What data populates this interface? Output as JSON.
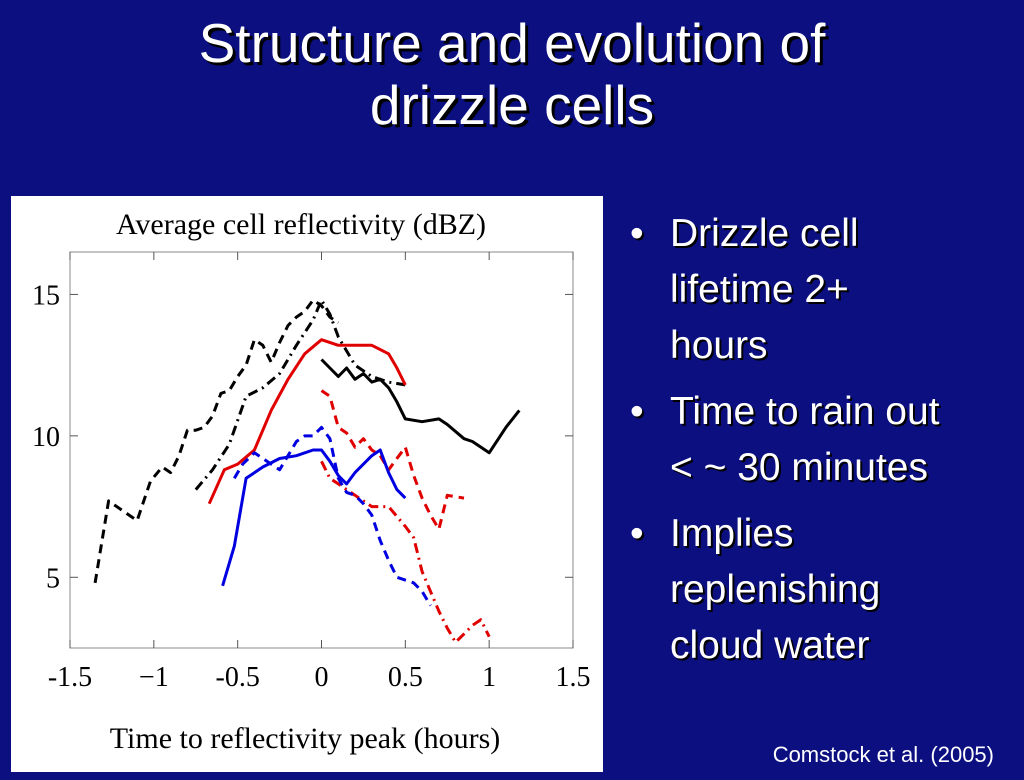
{
  "slide": {
    "title_lines": [
      "Structure and evolution of",
      "drizzle cells"
    ],
    "bullets": [
      [
        "Drizzle cell",
        "lifetime 2+",
        "hours"
      ],
      [
        "Time to rain out",
        "< ~ 30 minutes"
      ],
      [
        "Implies",
        "replenishing",
        "cloud water"
      ]
    ],
    "bullet_glyph": "•",
    "citation": "Comstock et al. (2005)",
    "background_color": "#0b0f80"
  },
  "chart_data": {
    "type": "line",
    "title": "Average cell reflectivity (dBZ)",
    "xlabel": "Time to reflectivity peak (hours)",
    "ylabel": "",
    "xlim": [
      -1.5,
      1.5
    ],
    "ylim": [
      2.5,
      16.5
    ],
    "xticks": [
      -1.5,
      -1,
      -0.5,
      0,
      0.5,
      1,
      1.5
    ],
    "xtick_labels": [
      "-1.5",
      "−1",
      "-0.5",
      "0",
      "0.5",
      "1",
      "1.5"
    ],
    "yticks": [
      5,
      10,
      15
    ],
    "ytick_labels": [
      "5",
      "10",
      "15"
    ],
    "grid": false,
    "legend": "none",
    "series": [
      {
        "color": "#000000",
        "dash": "dashed",
        "x": [
          -1.35,
          -1.27,
          -1.1,
          -1.02,
          -0.95,
          -0.9,
          -0.85,
          -0.8,
          -0.75,
          -0.7,
          -0.65,
          -0.6,
          -0.55,
          -0.5,
          -0.45,
          -0.4,
          -0.35,
          -0.3,
          -0.25,
          -0.2,
          -0.15,
          -0.1,
          -0.05,
          0,
          0.05,
          0.1
        ],
        "y": [
          4.8,
          7.7,
          7.0,
          8.4,
          8.9,
          8.7,
          9.3,
          10.2,
          10.2,
          10.3,
          10.7,
          11.5,
          11.6,
          12.1,
          12.5,
          13.4,
          13.2,
          12.6,
          13.3,
          13.9,
          14.2,
          14.4,
          14.8,
          14.6,
          14.2,
          14.0
        ]
      },
      {
        "color": "#000000",
        "dash": "dashdot",
        "x": [
          -0.75,
          -0.65,
          -0.55,
          -0.45,
          -0.35,
          -0.25,
          -0.15,
          -0.05,
          0,
          0.05,
          0.1,
          0.2,
          0.3,
          0.4,
          0.5
        ],
        "y": [
          8.1,
          8.8,
          9.7,
          11.4,
          11.7,
          12.2,
          13.2,
          14.1,
          14.8,
          14.3,
          13.5,
          12.5,
          12.1,
          11.9,
          11.8
        ]
      },
      {
        "color": "#000000",
        "dash": "solid",
        "x": [
          0,
          0.1,
          0.15,
          0.2,
          0.25,
          0.3,
          0.35,
          0.4,
          0.45,
          0.5,
          0.6,
          0.7,
          0.75,
          0.85,
          0.9,
          1.0,
          1.1,
          1.18
        ],
        "y": [
          12.7,
          12.1,
          12.4,
          12.0,
          12.2,
          11.9,
          12.0,
          11.7,
          11.2,
          10.6,
          10.5,
          10.6,
          10.4,
          9.9,
          9.8,
          9.4,
          10.3,
          10.9
        ]
      },
      {
        "color": "#e00000",
        "dash": "solid",
        "x": [
          -0.67,
          -0.58,
          -0.5,
          -0.4,
          -0.3,
          -0.2,
          -0.1,
          0,
          0.1,
          0.2,
          0.3,
          0.4,
          0.45,
          0.5
        ],
        "y": [
          7.6,
          8.8,
          9.0,
          9.5,
          10.9,
          12.0,
          12.9,
          13.4,
          13.2,
          13.2,
          13.2,
          12.9,
          12.4,
          11.8
        ]
      },
      {
        "color": "#e00000",
        "dash": "dashed",
        "x": [
          0,
          0.05,
          0.1,
          0.15,
          0.2,
          0.25,
          0.3,
          0.35,
          0.4,
          0.45,
          0.5,
          0.55,
          0.6,
          0.65,
          0.7,
          0.75,
          0.85
        ],
        "y": [
          11.6,
          11.4,
          10.3,
          10.1,
          9.6,
          9.9,
          9.5,
          9.3,
          8.8,
          9.2,
          9.6,
          8.6,
          7.8,
          7.2,
          6.7,
          7.9,
          7.8
        ]
      },
      {
        "color": "#e00000",
        "dash": "dashdot",
        "x": [
          0,
          0.05,
          0.1,
          0.2,
          0.3,
          0.4,
          0.5,
          0.55,
          0.6,
          0.65,
          0.7,
          0.75,
          0.8,
          0.85,
          0.9,
          0.95,
          1.0
        ],
        "y": [
          9.1,
          8.5,
          8.3,
          7.9,
          7.5,
          7.5,
          6.8,
          6.4,
          5.2,
          4.5,
          3.8,
          3.2,
          2.7,
          3.0,
          3.3,
          3.5,
          2.9
        ]
      },
      {
        "color": "#0000e0",
        "dash": "solid",
        "x": [
          -0.59,
          -0.52,
          -0.45,
          -0.35,
          -0.25,
          -0.15,
          -0.05,
          0,
          0.05,
          0.1,
          0.15,
          0.2,
          0.3,
          0.35,
          0.4,
          0.45,
          0.5
        ],
        "y": [
          4.7,
          6.1,
          8.5,
          8.9,
          9.2,
          9.3,
          9.5,
          9.5,
          9.1,
          8.6,
          8.3,
          8.7,
          9.3,
          9.5,
          8.7,
          8.1,
          7.8
        ]
      },
      {
        "color": "#0000e0",
        "dash": "dashed",
        "x": [
          -0.52,
          -0.47,
          -0.4,
          -0.3,
          -0.25,
          -0.2,
          -0.15,
          -0.1,
          -0.05,
          0,
          0.05,
          0.1,
          0.15,
          0.2,
          0.25,
          0.3,
          0.35,
          0.4,
          0.45,
          0.5,
          0.55,
          0.6,
          0.65
        ],
        "y": [
          8.5,
          9.0,
          9.4,
          9.0,
          8.8,
          9.3,
          9.8,
          10.0,
          10.0,
          10.3,
          9.9,
          8.5,
          8.0,
          7.9,
          7.6,
          7.2,
          6.3,
          5.6,
          5.0,
          4.9,
          4.8,
          4.5,
          4.0
        ]
      }
    ]
  }
}
